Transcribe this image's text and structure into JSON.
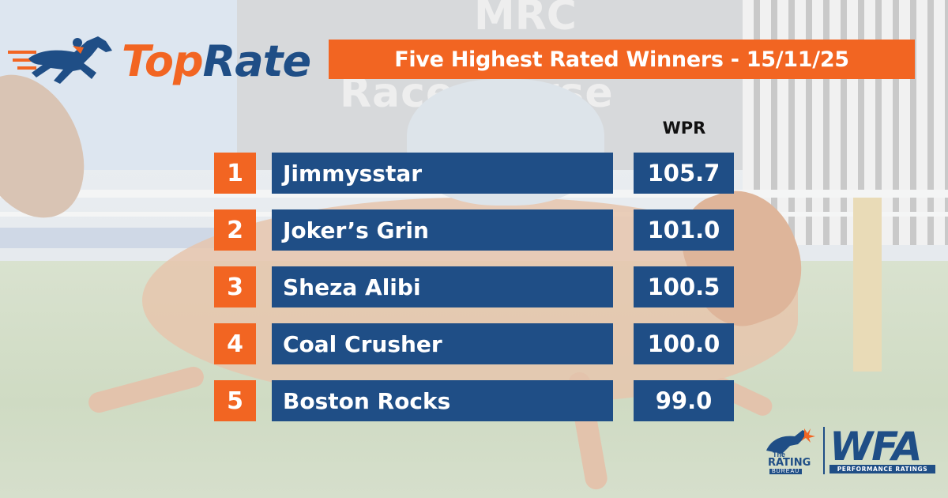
{
  "logo": {
    "brand_part1": "Top",
    "brand_part2": "Rate"
  },
  "header": {
    "title": "Five Highest Rated Winners - 15/11/25"
  },
  "table": {
    "value_column_header": "WPR",
    "rows": [
      {
        "rank": "1",
        "name": "Jimmysstar",
        "wpr": "105.7"
      },
      {
        "rank": "2",
        "name": "Joker’s Grin",
        "wpr": "101.0"
      },
      {
        "rank": "3",
        "name": "Sheza Alibi",
        "wpr": "100.5"
      },
      {
        "rank": "4",
        "name": "Coal Crusher",
        "wpr": "100.0"
      },
      {
        "rank": "5",
        "name": "Boston Rocks",
        "wpr": "99.0"
      }
    ]
  },
  "footer": {
    "trb_the": "The",
    "trb_rating": "RATING",
    "trb_bureau": "BUREAU",
    "wfa_title": "WFA",
    "wfa_sub": "PERFORMANCE RATINGS"
  },
  "background": {
    "board_text_top": "MRC",
    "board_text_bottom": "Racecourse"
  },
  "colors": {
    "accent_orange": "#f26522",
    "brand_blue": "#1f4e86"
  }
}
